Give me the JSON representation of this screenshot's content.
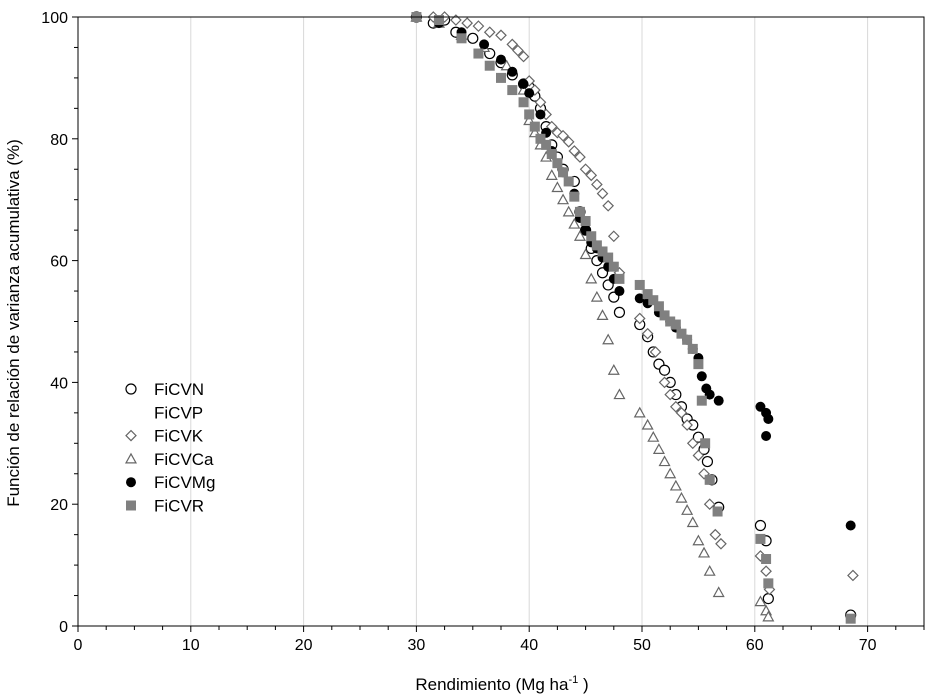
{
  "chart_data": {
    "type": "scatter",
    "xlabel": "Rendimiento (Mg ha",
    "xlabel_sup": "-1",
    "xlabel_end": " )",
    "ylabel": "Función de relación de varianza acumulativa (%)",
    "xlim": [
      0,
      75
    ],
    "ylim": [
      0,
      100
    ],
    "xticks": [
      0,
      10,
      20,
      30,
      40,
      50,
      60,
      70
    ],
    "yticks": [
      0,
      20,
      40,
      60,
      80,
      100
    ],
    "grid": "vertical",
    "legend_position": "left-middle",
    "series": [
      {
        "name": "FiCVN",
        "marker": "open-circle",
        "color": "#000000",
        "points": [
          [
            30,
            100
          ],
          [
            31.5,
            99
          ],
          [
            32.5,
            99.5
          ],
          [
            33.5,
            97.5
          ],
          [
            35,
            96.5
          ],
          [
            36.5,
            94
          ],
          [
            37.5,
            92.5
          ],
          [
            38.5,
            90.5
          ],
          [
            39.5,
            89
          ],
          [
            40,
            88.5
          ],
          [
            40.5,
            87
          ],
          [
            41,
            85
          ],
          [
            41.5,
            82
          ],
          [
            42,
            79
          ],
          [
            42.5,
            77
          ],
          [
            43,
            75
          ],
          [
            44,
            73
          ],
          [
            44.5,
            68
          ],
          [
            45,
            65
          ],
          [
            45.5,
            62
          ],
          [
            46,
            60
          ],
          [
            46.5,
            58
          ],
          [
            47,
            56
          ],
          [
            47.5,
            54
          ],
          [
            48,
            51.5
          ],
          [
            49.8,
            49.5
          ],
          [
            50.5,
            47.5
          ],
          [
            51,
            45
          ],
          [
            51.5,
            43
          ],
          [
            52,
            42
          ],
          [
            52.5,
            40
          ],
          [
            53,
            38
          ],
          [
            53.5,
            36
          ],
          [
            54,
            34
          ],
          [
            54.5,
            33
          ],
          [
            55,
            31
          ],
          [
            55.5,
            29
          ],
          [
            55.8,
            27
          ],
          [
            56.2,
            24
          ],
          [
            56.8,
            19.5
          ],
          [
            60.5,
            16.5
          ],
          [
            61,
            14
          ],
          [
            61.2,
            4.5
          ],
          [
            68.5,
            1.8
          ]
        ]
      },
      {
        "name": "FiCVP",
        "marker": "none",
        "color": "#000000",
        "points": []
      },
      {
        "name": "FiCVK",
        "marker": "open-diamond",
        "color": "#666666",
        "points": [
          [
            30,
            100
          ],
          [
            31.5,
            100
          ],
          [
            32.5,
            100
          ],
          [
            33.5,
            99.5
          ],
          [
            34.5,
            99
          ],
          [
            35.5,
            98.5
          ],
          [
            36.5,
            97.5
          ],
          [
            37.5,
            97
          ],
          [
            38.5,
            95.5
          ],
          [
            39,
            94.5
          ],
          [
            39.5,
            93.5
          ],
          [
            40,
            89.5
          ],
          [
            40.5,
            88
          ],
          [
            41,
            86
          ],
          [
            41.5,
            84
          ],
          [
            42,
            82
          ],
          [
            42.5,
            81
          ],
          [
            43,
            80.5
          ],
          [
            43.5,
            79.5
          ],
          [
            44,
            78
          ],
          [
            44.5,
            77
          ],
          [
            45,
            75
          ],
          [
            45.5,
            74
          ],
          [
            46,
            72.5
          ],
          [
            46.5,
            71
          ],
          [
            47,
            69
          ],
          [
            47.5,
            64
          ],
          [
            48,
            58
          ],
          [
            49.8,
            50.5
          ],
          [
            50.5,
            48
          ],
          [
            51.2,
            45
          ],
          [
            52,
            40
          ],
          [
            52.5,
            38
          ],
          [
            53,
            36
          ],
          [
            53.5,
            35
          ],
          [
            54,
            33
          ],
          [
            54.5,
            30
          ],
          [
            55,
            28
          ],
          [
            55.5,
            25
          ],
          [
            56,
            20
          ],
          [
            56.5,
            15
          ],
          [
            57,
            13.5
          ],
          [
            60.5,
            11.5
          ],
          [
            61,
            9
          ],
          [
            61.3,
            6
          ],
          [
            68.7,
            8.3
          ]
        ]
      },
      {
        "name": "FiCVCa",
        "marker": "open-triangle",
        "color": "#666666",
        "points": [
          [
            30,
            100
          ],
          [
            32,
            99
          ],
          [
            34,
            97
          ],
          [
            36,
            95
          ],
          [
            38,
            92
          ],
          [
            39.5,
            88
          ],
          [
            40,
            83
          ],
          [
            40.5,
            81
          ],
          [
            41,
            79
          ],
          [
            41.5,
            77
          ],
          [
            42,
            74
          ],
          [
            42.5,
            72
          ],
          [
            43,
            70
          ],
          [
            43.5,
            68
          ],
          [
            44,
            66
          ],
          [
            44.5,
            64
          ],
          [
            45,
            61
          ],
          [
            45.5,
            57
          ],
          [
            46,
            54
          ],
          [
            46.5,
            51
          ],
          [
            47,
            47
          ],
          [
            47.5,
            42
          ],
          [
            48,
            38
          ],
          [
            49.8,
            35
          ],
          [
            50.5,
            33
          ],
          [
            51,
            31
          ],
          [
            51.5,
            29
          ],
          [
            52,
            27
          ],
          [
            52.5,
            25
          ],
          [
            53,
            23
          ],
          [
            53.5,
            21
          ],
          [
            54,
            19
          ],
          [
            54.5,
            17
          ],
          [
            55,
            14
          ],
          [
            55.5,
            12
          ],
          [
            56,
            9
          ],
          [
            56.8,
            5.5
          ],
          [
            60.5,
            4
          ],
          [
            61,
            2.5
          ],
          [
            61.2,
            1.5
          ]
        ]
      },
      {
        "name": "FiCVMg",
        "marker": "filled-circle",
        "color": "#000000",
        "points": [
          [
            30,
            100
          ],
          [
            32,
            99
          ],
          [
            34,
            97.5
          ],
          [
            36,
            95.5
          ],
          [
            37.5,
            93
          ],
          [
            38.5,
            91
          ],
          [
            39.5,
            89
          ],
          [
            40,
            87.5
          ],
          [
            41,
            84
          ],
          [
            41.5,
            81
          ],
          [
            42,
            78
          ],
          [
            43,
            74.5
          ],
          [
            44,
            71
          ],
          [
            44.5,
            67
          ],
          [
            45,
            65
          ],
          [
            45.5,
            63
          ],
          [
            46,
            62
          ],
          [
            46.5,
            60.5
          ],
          [
            47,
            59
          ],
          [
            47.5,
            57
          ],
          [
            48,
            55
          ],
          [
            49.8,
            53.8
          ],
          [
            50.5,
            53
          ],
          [
            51.5,
            51.5
          ],
          [
            52.5,
            50
          ],
          [
            53,
            49
          ],
          [
            54,
            47
          ],
          [
            54.5,
            45.5
          ],
          [
            55,
            44
          ],
          [
            55.3,
            41
          ],
          [
            55.7,
            39
          ],
          [
            56,
            38
          ],
          [
            56.8,
            37
          ],
          [
            60.5,
            36
          ],
          [
            61,
            35
          ],
          [
            61.2,
            34
          ],
          [
            61,
            31.2
          ],
          [
            68.5,
            16.5
          ]
        ]
      },
      {
        "name": "FiCVR",
        "marker": "filled-square",
        "color": "#808080",
        "points": [
          [
            30,
            100
          ],
          [
            32,
            99.5
          ],
          [
            34,
            96.5
          ],
          [
            35.5,
            94
          ],
          [
            36.5,
            92
          ],
          [
            37.5,
            90
          ],
          [
            38.5,
            88
          ],
          [
            39.5,
            86
          ],
          [
            40,
            84
          ],
          [
            40.5,
            82
          ],
          [
            41,
            80
          ],
          [
            41.5,
            79
          ],
          [
            42,
            77.5
          ],
          [
            42.5,
            76
          ],
          [
            43,
            74.5
          ],
          [
            43.5,
            73
          ],
          [
            44,
            70.5
          ],
          [
            44.5,
            68
          ],
          [
            45,
            66.5
          ],
          [
            45.5,
            64
          ],
          [
            46,
            62.5
          ],
          [
            46.5,
            61.5
          ],
          [
            47,
            60.5
          ],
          [
            47.5,
            59
          ],
          [
            48,
            57
          ],
          [
            49.8,
            56
          ],
          [
            50.5,
            54.5
          ],
          [
            51,
            53.5
          ],
          [
            51.5,
            52.5
          ],
          [
            52,
            51
          ],
          [
            52.5,
            50
          ],
          [
            53,
            49.5
          ],
          [
            53.5,
            48
          ],
          [
            54,
            47
          ],
          [
            54.5,
            45.5
          ],
          [
            55,
            43
          ],
          [
            55.3,
            37
          ],
          [
            55.6,
            30
          ],
          [
            56,
            24
          ],
          [
            56.7,
            18.8
          ],
          [
            60.5,
            14.3
          ],
          [
            61,
            11
          ],
          [
            61.2,
            7
          ],
          [
            68.5,
            1.2
          ]
        ]
      }
    ]
  }
}
